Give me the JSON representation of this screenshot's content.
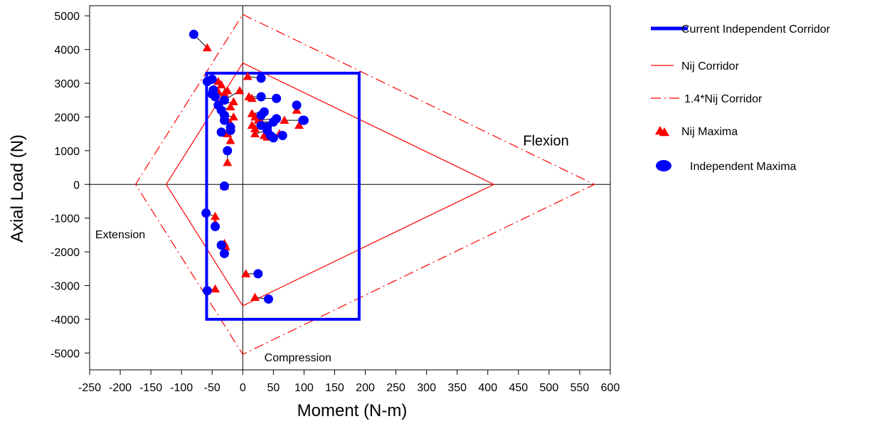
{
  "chart_data": {
    "type": "scatter",
    "xlabel": "Moment (N-m)",
    "ylabel": "Axial Load (N)",
    "xlim": [
      -250,
      600
    ],
    "ylim": [
      -5500,
      5300
    ],
    "xticks": [
      -250,
      -200,
      -150,
      -100,
      -50,
      0,
      50,
      100,
      150,
      200,
      250,
      300,
      350,
      400,
      450,
      500,
      550,
      600
    ],
    "yticks": [
      -5000,
      -4000,
      -3000,
      -2000,
      -1000,
      0,
      1000,
      2000,
      3000,
      4000,
      5000
    ],
    "legend_position": "right",
    "legend": [
      {
        "key": "current",
        "label": "Current Independent Corridor"
      },
      {
        "key": "nij",
        "label": "Nij Corridor"
      },
      {
        "key": "nij14",
        "label": "1.4*Nij Corridor"
      },
      {
        "key": "nijmax",
        "label": "Nij Maxima"
      },
      {
        "key": "indmax",
        "label": "Independent Maxima"
      }
    ],
    "annotations": [
      {
        "key": "flexion",
        "text": "Flexion",
        "x": 495,
        "y": 1150
      },
      {
        "key": "extension",
        "text": "Extension",
        "x": -200,
        "y": -1600
      },
      {
        "key": "compression",
        "text": "Compression",
        "x": 90,
        "y": -5250
      }
    ],
    "colors": {
      "blue": "#0000ff",
      "red": "#ff0000",
      "axis": "#000000"
    },
    "corridors": {
      "current": [
        [
          -59,
          3300
        ],
        [
          190,
          3300
        ],
        [
          190,
          -4000
        ],
        [
          -59,
          -4000
        ]
      ],
      "nij": [
        [
          0,
          3600
        ],
        [
          410,
          0
        ],
        [
          0,
          -3600
        ],
        [
          -125,
          0
        ]
      ],
      "nij14": [
        [
          0,
          5040
        ],
        [
          574,
          0
        ],
        [
          0,
          -5040
        ],
        [
          -175,
          0
        ]
      ]
    },
    "pairs": [
      {
        "nij": [
          -58,
          4050
        ],
        "ind": [
          -80,
          4450
        ]
      },
      {
        "nij": [
          -40,
          3050
        ],
        "ind": [
          -58,
          3050
        ]
      },
      {
        "nij": [
          -25,
          2780
        ],
        "ind": [
          -50,
          3120
        ]
      },
      {
        "nij": [
          -35,
          2950
        ],
        "ind": [
          -48,
          2800
        ]
      },
      {
        "nij": [
          -40,
          2750
        ],
        "ind": [
          -50,
          2680
        ]
      },
      {
        "nij": [
          -30,
          2700
        ],
        "ind": [
          -45,
          2600
        ]
      },
      {
        "nij": [
          -5,
          2780
        ],
        "ind": [
          -30,
          2500
        ]
      },
      {
        "nij": [
          -15,
          2450
        ],
        "ind": [
          -40,
          2350
        ]
      },
      {
        "nij": [
          -20,
          2300
        ],
        "ind": [
          -35,
          2200
        ]
      },
      {
        "nij": [
          -15,
          2000
        ],
        "ind": [
          -30,
          2050
        ]
      },
      {
        "nij": [
          -25,
          1900
        ],
        "ind": [
          -30,
          1900
        ]
      },
      {
        "nij": [
          -20,
          1800
        ],
        "ind": [
          -20,
          1700
        ]
      },
      {
        "nij": [
          -25,
          1500
        ],
        "ind": [
          -35,
          1550
        ]
      },
      {
        "nij": [
          -20,
          1300
        ],
        "ind": [
          -20,
          1600
        ]
      },
      {
        "nij": [
          -25,
          650
        ],
        "ind": [
          -25,
          1000
        ]
      },
      {
        "nij": [
          -30,
          -50
        ],
        "ind": [
          -30,
          -50
        ]
      },
      {
        "nij": [
          8,
          3200
        ],
        "ind": [
          30,
          3150
        ]
      },
      {
        "nij": [
          10,
          2600
        ],
        "ind": [
          30,
          2600
        ]
      },
      {
        "nij": [
          15,
          2550
        ],
        "ind": [
          55,
          2550
        ]
      },
      {
        "nij": [
          15,
          2100
        ],
        "ind": [
          35,
          2150
        ]
      },
      {
        "nij": [
          20,
          2000
        ],
        "ind": [
          30,
          2050
        ]
      },
      {
        "nij": [
          25,
          1900
        ],
        "ind": [
          55,
          1950
        ]
      },
      {
        "nij": [
          30,
          1850
        ],
        "ind": [
          50,
          1850
        ]
      },
      {
        "nij": [
          15,
          1750
        ],
        "ind": [
          30,
          1750
        ]
      },
      {
        "nij": [
          20,
          1650
        ],
        "ind": [
          40,
          1700
        ]
      },
      {
        "nij": [
          20,
          1500
        ],
        "ind": [
          40,
          1600
        ]
      },
      {
        "nij": [
          35,
          1450
        ],
        "ind": [
          45,
          1450
        ]
      },
      {
        "nij": [
          40,
          1400
        ],
        "ind": [
          50,
          1380
        ]
      },
      {
        "nij": [
          68,
          1900
        ],
        "ind": [
          98,
          1900
        ]
      },
      {
        "nij": [
          60,
          1500
        ],
        "ind": [
          65,
          1450
        ]
      },
      {
        "nij": [
          88,
          2200
        ],
        "ind": [
          88,
          2350
        ]
      },
      {
        "nij": [
          92,
          1750
        ],
        "ind": [
          100,
          1900
        ]
      },
      {
        "nij": [
          -45,
          -950
        ],
        "ind": [
          -60,
          -850
        ]
      },
      {
        "nij": [
          -45,
          -1150
        ],
        "ind": [
          -45,
          -1250
        ]
      },
      {
        "nij": [
          -30,
          -1750
        ],
        "ind": [
          -35,
          -1800
        ]
      },
      {
        "nij": [
          -28,
          -1850
        ],
        "ind": [
          -30,
          -2050
        ]
      },
      {
        "nij": [
          5,
          -2650
        ],
        "ind": [
          25,
          -2650
        ]
      },
      {
        "nij": [
          -45,
          -3100
        ],
        "ind": [
          -58,
          -3150
        ]
      },
      {
        "nij": [
          20,
          -3350
        ],
        "ind": [
          42,
          -3400
        ]
      }
    ]
  }
}
